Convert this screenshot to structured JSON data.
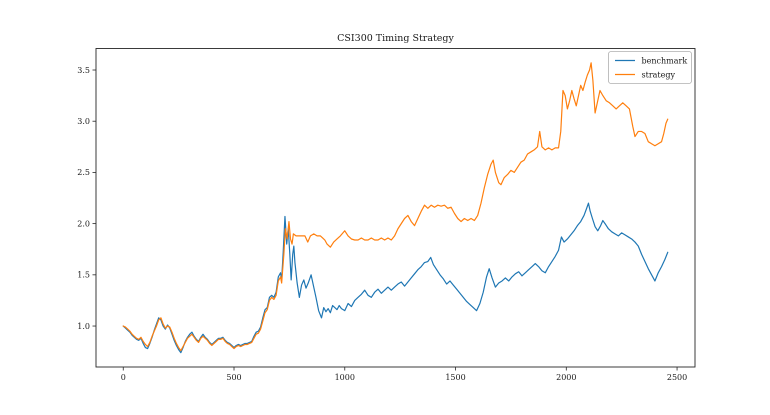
{
  "figure": {
    "background": "#ffffff"
  },
  "chart_data": {
    "type": "line",
    "title": "CSI300 Timing Strategy",
    "xlabel": "",
    "ylabel": "",
    "grid": false,
    "xlim": [
      -123,
      2581
    ],
    "ylim": [
      0.6,
      3.71
    ],
    "x_ticks": [
      0,
      500,
      1000,
      1500,
      2000,
      2500
    ],
    "x_tick_labels": [
      "0",
      "500",
      "1000",
      "1500",
      "2000",
      "2500"
    ],
    "y_ticks": [
      1.0,
      1.5,
      2.0,
      2.5,
      3.0,
      3.5
    ],
    "y_tick_labels": [
      "1.0",
      "1.5",
      "2.0",
      "2.5",
      "3.0",
      "3.5"
    ],
    "legend": {
      "position": "upper right",
      "entries": [
        "benchmark",
        "strategy"
      ]
    },
    "axis_color": "#262626",
    "series": [
      {
        "name": "benchmark",
        "color": "#1f77b4",
        "x": [
          0,
          10,
          20,
          30,
          40,
          50,
          60,
          70,
          80,
          90,
          100,
          110,
          120,
          130,
          140,
          150,
          160,
          170,
          180,
          190,
          200,
          210,
          220,
          230,
          240,
          250,
          260,
          270,
          280,
          290,
          300,
          310,
          320,
          330,
          340,
          350,
          360,
          370,
          380,
          390,
          400,
          410,
          420,
          430,
          440,
          450,
          460,
          470,
          480,
          490,
          500,
          510,
          520,
          530,
          540,
          550,
          560,
          570,
          580,
          590,
          600,
          610,
          620,
          630,
          640,
          650,
          660,
          670,
          680,
          690,
          700,
          710,
          715,
          722,
          730,
          738,
          745,
          752,
          758,
          765,
          770,
          775,
          785,
          795,
          805,
          815,
          825,
          835,
          848,
          858,
          870,
          882,
          895,
          905,
          915,
          925,
          935,
          945,
          955,
          965,
          975,
          985,
          1000,
          1015,
          1030,
          1045,
          1060,
          1075,
          1090,
          1105,
          1120,
          1135,
          1150,
          1165,
          1180,
          1195,
          1210,
          1225,
          1240,
          1255,
          1270,
          1285,
          1300,
          1315,
          1330,
          1345,
          1360,
          1375,
          1388,
          1400,
          1415,
          1430,
          1445,
          1460,
          1475,
          1490,
          1505,
          1520,
          1535,
          1550,
          1565,
          1580,
          1595,
          1610,
          1625,
          1640,
          1652,
          1665,
          1680,
          1695,
          1710,
          1725,
          1740,
          1755,
          1770,
          1785,
          1800,
          1815,
          1830,
          1845,
          1860,
          1875,
          1890,
          1905,
          1920,
          1935,
          1950,
          1965,
          1978,
          1990,
          2005,
          2020,
          2035,
          2050,
          2065,
          2080,
          2092,
          2100,
          2108,
          2118,
          2130,
          2142,
          2155,
          2165,
          2178,
          2190,
          2205,
          2220,
          2235,
          2250,
          2265,
          2280,
          2295,
          2310,
          2325,
          2340,
          2355,
          2370,
          2385,
          2400,
          2415,
          2430,
          2445,
          2458
        ],
        "y": [
          1.0,
          0.98,
          0.96,
          0.94,
          0.91,
          0.89,
          0.87,
          0.86,
          0.88,
          0.83,
          0.79,
          0.78,
          0.83,
          0.89,
          0.96,
          1.02,
          1.08,
          1.06,
          1.0,
          0.97,
          1.01,
          0.98,
          0.92,
          0.86,
          0.81,
          0.77,
          0.74,
          0.79,
          0.85,
          0.89,
          0.92,
          0.94,
          0.9,
          0.87,
          0.85,
          0.89,
          0.92,
          0.89,
          0.87,
          0.84,
          0.82,
          0.84,
          0.86,
          0.88,
          0.88,
          0.89,
          0.86,
          0.84,
          0.83,
          0.81,
          0.79,
          0.81,
          0.82,
          0.81,
          0.82,
          0.83,
          0.83,
          0.84,
          0.85,
          0.9,
          0.94,
          0.95,
          0.99,
          1.08,
          1.16,
          1.18,
          1.28,
          1.3,
          1.28,
          1.33,
          1.48,
          1.52,
          1.45,
          1.72,
          2.07,
          1.8,
          1.95,
          1.7,
          1.45,
          1.7,
          1.78,
          1.62,
          1.42,
          1.28,
          1.4,
          1.45,
          1.37,
          1.42,
          1.5,
          1.4,
          1.28,
          1.15,
          1.08,
          1.18,
          1.14,
          1.17,
          1.13,
          1.2,
          1.18,
          1.16,
          1.2,
          1.17,
          1.15,
          1.22,
          1.19,
          1.25,
          1.28,
          1.31,
          1.35,
          1.3,
          1.28,
          1.33,
          1.36,
          1.32,
          1.35,
          1.38,
          1.35,
          1.38,
          1.41,
          1.43,
          1.39,
          1.43,
          1.47,
          1.51,
          1.55,
          1.58,
          1.62,
          1.63,
          1.67,
          1.6,
          1.55,
          1.5,
          1.46,
          1.41,
          1.44,
          1.4,
          1.36,
          1.32,
          1.28,
          1.24,
          1.21,
          1.18,
          1.15,
          1.22,
          1.33,
          1.48,
          1.56,
          1.47,
          1.38,
          1.42,
          1.44,
          1.47,
          1.44,
          1.48,
          1.51,
          1.53,
          1.49,
          1.52,
          1.55,
          1.58,
          1.61,
          1.58,
          1.54,
          1.52,
          1.58,
          1.63,
          1.68,
          1.74,
          1.87,
          1.82,
          1.85,
          1.89,
          1.93,
          1.98,
          2.02,
          2.08,
          2.15,
          2.2,
          2.12,
          2.05,
          1.97,
          1.93,
          1.98,
          2.03,
          1.99,
          1.95,
          1.92,
          1.9,
          1.88,
          1.91,
          1.89,
          1.87,
          1.85,
          1.82,
          1.78,
          1.7,
          1.63,
          1.56,
          1.5,
          1.44,
          1.52,
          1.58,
          1.65,
          1.72
        ]
      },
      {
        "name": "strategy",
        "color": "#ff7f0e",
        "x": [
          0,
          10,
          20,
          30,
          40,
          50,
          60,
          70,
          80,
          90,
          100,
          110,
          120,
          130,
          140,
          150,
          160,
          170,
          180,
          190,
          200,
          210,
          220,
          230,
          240,
          250,
          260,
          270,
          280,
          290,
          300,
          310,
          320,
          330,
          340,
          350,
          360,
          370,
          380,
          390,
          400,
          410,
          420,
          430,
          440,
          450,
          460,
          470,
          480,
          490,
          500,
          510,
          520,
          530,
          540,
          550,
          560,
          570,
          580,
          590,
          600,
          610,
          620,
          630,
          640,
          650,
          660,
          670,
          680,
          690,
          700,
          710,
          715,
          725,
          732,
          740,
          748,
          755,
          762,
          768,
          780,
          790,
          800,
          810,
          820,
          833,
          845,
          860,
          875,
          890,
          900,
          910,
          920,
          935,
          950,
          965,
          980,
          1000,
          1015,
          1030,
          1045,
          1060,
          1075,
          1090,
          1105,
          1120,
          1135,
          1150,
          1165,
          1180,
          1195,
          1210,
          1225,
          1240,
          1255,
          1270,
          1285,
          1300,
          1315,
          1330,
          1345,
          1360,
          1375,
          1390,
          1405,
          1420,
          1435,
          1450,
          1465,
          1480,
          1495,
          1510,
          1525,
          1540,
          1555,
          1570,
          1585,
          1600,
          1615,
          1630,
          1645,
          1660,
          1670,
          1680,
          1695,
          1705,
          1720,
          1735,
          1750,
          1765,
          1780,
          1795,
          1810,
          1825,
          1840,
          1855,
          1870,
          1880,
          1890,
          1905,
          1920,
          1935,
          1950,
          1965,
          1975,
          1985,
          1995,
          2005,
          2015,
          2025,
          2035,
          2045,
          2055,
          2065,
          2075,
          2085,
          2095,
          2105,
          2112,
          2120,
          2130,
          2140,
          2152,
          2165,
          2180,
          2195,
          2210,
          2225,
          2240,
          2255,
          2270,
          2285,
          2300,
          2310,
          2325,
          2340,
          2355,
          2370,
          2385,
          2400,
          2415,
          2430,
          2440,
          2450,
          2458
        ],
        "y": [
          1.0,
          0.99,
          0.97,
          0.95,
          0.92,
          0.9,
          0.88,
          0.87,
          0.89,
          0.85,
          0.82,
          0.8,
          0.84,
          0.9,
          0.95,
          1.0,
          1.06,
          1.08,
          1.02,
          0.98,
          1.0,
          0.99,
          0.94,
          0.88,
          0.83,
          0.79,
          0.76,
          0.8,
          0.84,
          0.88,
          0.9,
          0.92,
          0.89,
          0.86,
          0.84,
          0.88,
          0.9,
          0.88,
          0.86,
          0.83,
          0.81,
          0.83,
          0.85,
          0.87,
          0.87,
          0.88,
          0.85,
          0.83,
          0.82,
          0.8,
          0.78,
          0.8,
          0.81,
          0.8,
          0.81,
          0.82,
          0.82,
          0.83,
          0.84,
          0.88,
          0.92,
          0.93,
          0.97,
          1.05,
          1.13,
          1.16,
          1.25,
          1.28,
          1.26,
          1.3,
          1.44,
          1.48,
          1.42,
          1.7,
          1.95,
          1.85,
          2.02,
          1.85,
          1.8,
          1.9,
          1.88,
          1.88,
          1.88,
          1.88,
          1.88,
          1.82,
          1.88,
          1.9,
          1.88,
          1.88,
          1.86,
          1.84,
          1.8,
          1.77,
          1.82,
          1.85,
          1.88,
          1.93,
          1.88,
          1.85,
          1.84,
          1.84,
          1.86,
          1.84,
          1.84,
          1.86,
          1.84,
          1.84,
          1.86,
          1.84,
          1.86,
          1.84,
          1.88,
          1.95,
          2.0,
          2.05,
          2.08,
          2.02,
          1.98,
          2.05,
          2.12,
          2.18,
          2.15,
          2.18,
          2.16,
          2.18,
          2.17,
          2.18,
          2.15,
          2.16,
          2.1,
          2.05,
          2.02,
          2.05,
          2.03,
          2.05,
          2.03,
          2.08,
          2.2,
          2.35,
          2.48,
          2.58,
          2.62,
          2.5,
          2.4,
          2.38,
          2.45,
          2.48,
          2.52,
          2.5,
          2.55,
          2.6,
          2.62,
          2.68,
          2.7,
          2.72,
          2.75,
          2.9,
          2.75,
          2.72,
          2.74,
          2.72,
          2.74,
          2.74,
          2.9,
          3.3,
          3.25,
          3.12,
          3.2,
          3.3,
          3.22,
          3.15,
          3.25,
          3.35,
          3.3,
          3.38,
          3.45,
          3.5,
          3.57,
          3.4,
          3.08,
          3.18,
          3.3,
          3.25,
          3.2,
          3.18,
          3.15,
          3.12,
          3.15,
          3.18,
          3.15,
          3.12,
          2.95,
          2.85,
          2.9,
          2.9,
          2.88,
          2.8,
          2.78,
          2.76,
          2.78,
          2.8,
          2.88,
          2.98,
          3.02
        ]
      }
    ]
  }
}
